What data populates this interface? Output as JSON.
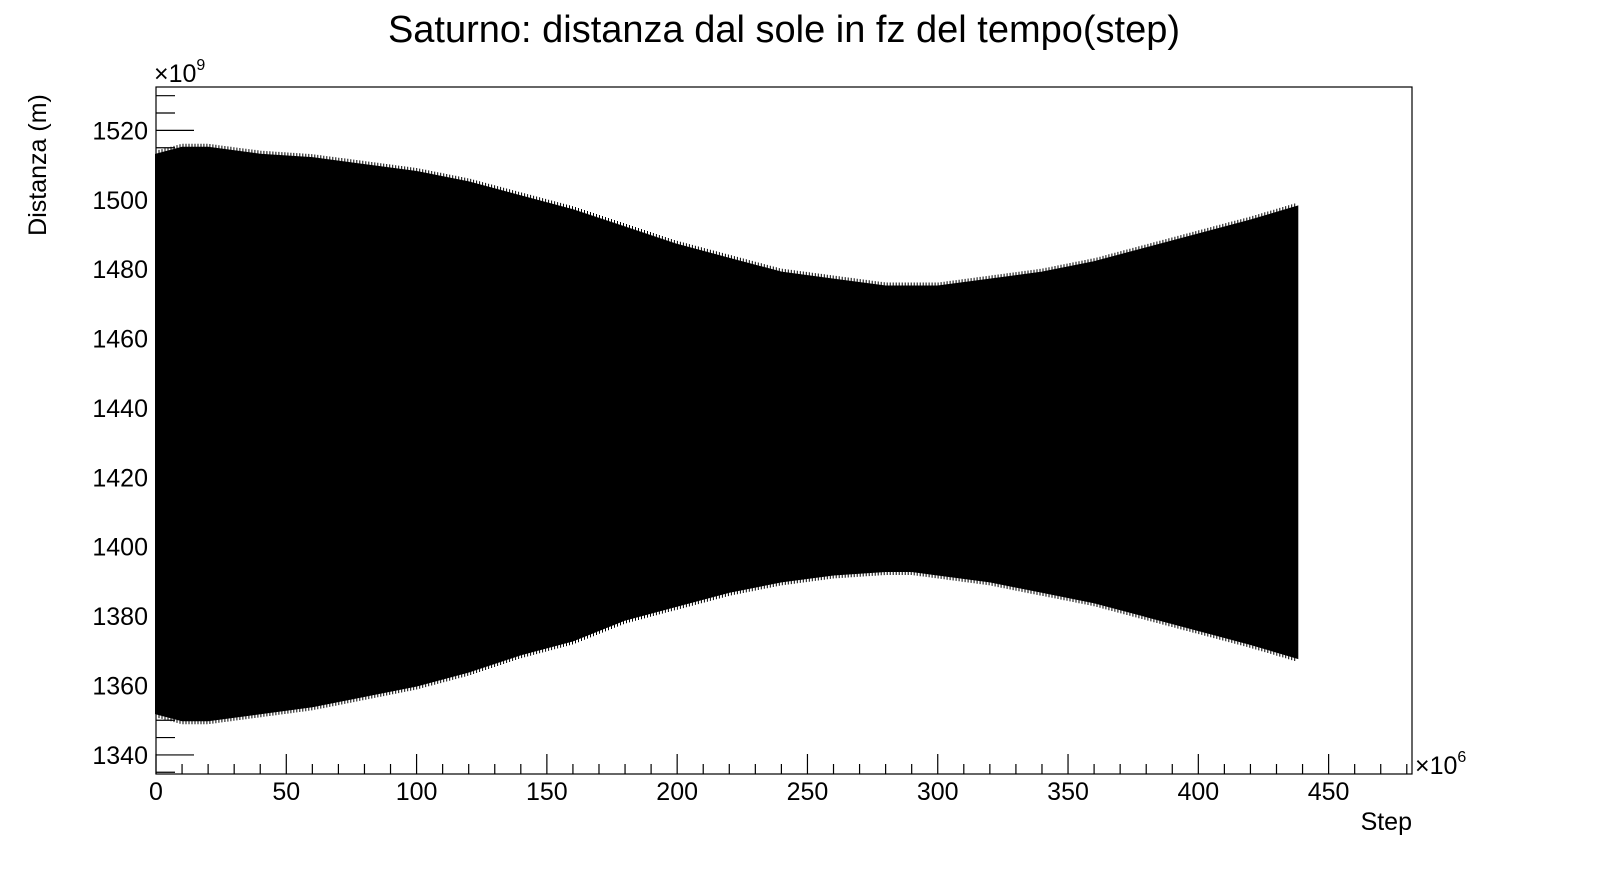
{
  "chart_data": {
    "type": "area",
    "title": "Saturno: distanza dal sole in fz del tempo(step)",
    "xlabel": "Step",
    "ylabel": "Distanza (m)",
    "x_multiplier_base": "×10",
    "x_multiplier_exp": "6",
    "y_multiplier_base": "×10",
    "y_multiplier_exp": "9",
    "xlim": [
      0,
      482
    ],
    "ylim": [
      1334.5,
      1532.5
    ],
    "x_ticks": [
      {
        "value": 0,
        "label": "0"
      },
      {
        "value": 50,
        "label": "50"
      },
      {
        "value": 100,
        "label": "100"
      },
      {
        "value": 150,
        "label": "150"
      },
      {
        "value": 200,
        "label": "200"
      },
      {
        "value": 250,
        "label": "250"
      },
      {
        "value": 300,
        "label": "300"
      },
      {
        "value": 350,
        "label": "350"
      },
      {
        "value": 400,
        "label": "400"
      },
      {
        "value": 450,
        "label": "450"
      }
    ],
    "y_ticks": [
      {
        "value": 1340,
        "label": "1340"
      },
      {
        "value": 1360,
        "label": "1360"
      },
      {
        "value": 1380,
        "label": "1380"
      },
      {
        "value": 1400,
        "label": "1400"
      },
      {
        "value": 1420,
        "label": "1420"
      },
      {
        "value": 1440,
        "label": "1440"
      },
      {
        "value": 1460,
        "label": "1460"
      },
      {
        "value": 1480,
        "label": "1480"
      },
      {
        "value": 1500,
        "label": "1500"
      },
      {
        "value": 1520,
        "label": "1520"
      }
    ],
    "grid": false,
    "color": "#000000",
    "envelope": {
      "x": [
        0,
        10,
        20,
        40,
        60,
        80,
        100,
        120,
        140,
        160,
        180,
        200,
        220,
        240,
        260,
        280,
        290,
        300,
        320,
        340,
        360,
        380,
        400,
        420,
        438
      ],
      "upper": [
        1513,
        1515,
        1515,
        1513,
        1512,
        1510,
        1508,
        1505,
        1501,
        1497,
        1492,
        1487,
        1483,
        1479,
        1477,
        1475,
        1475,
        1475,
        1477,
        1479,
        1482,
        1486,
        1490,
        1494,
        1498
      ],
      "lower": [
        1352,
        1350,
        1350,
        1352,
        1354,
        1357,
        1360,
        1364,
        1369,
        1373,
        1379,
        1383,
        1387,
        1390,
        1392,
        1393,
        1393,
        1392,
        1390,
        1387,
        1384,
        1380,
        1376,
        1372,
        1368
      ]
    }
  }
}
